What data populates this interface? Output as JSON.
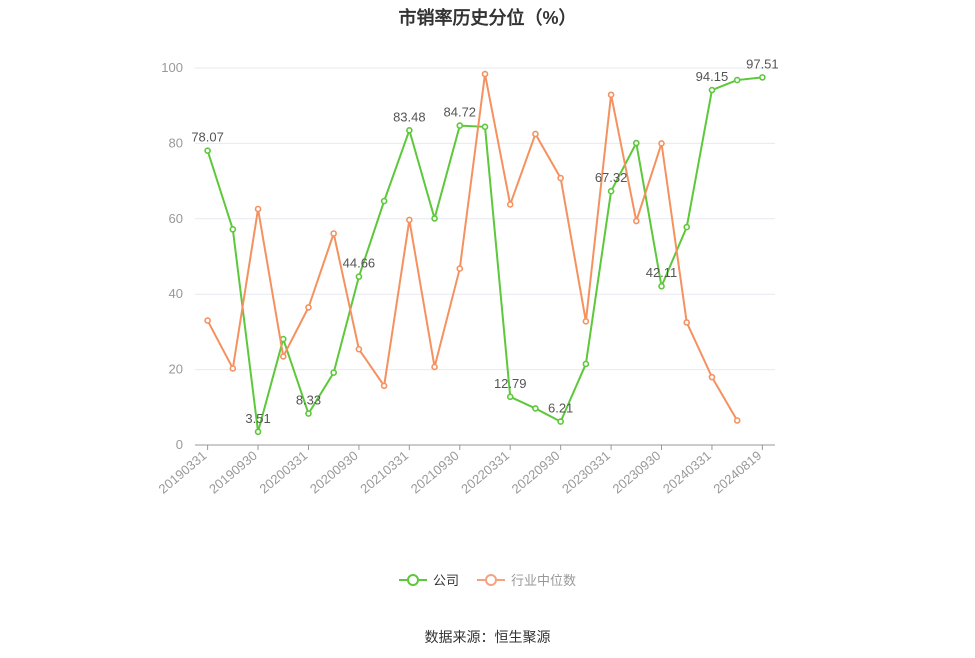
{
  "chart_data": {
    "type": "line",
    "title": "市销率历史分位（%）",
    "xlabel": "",
    "ylabel": "",
    "ylim": [
      0,
      100
    ],
    "yticks": [
      0,
      20,
      40,
      60,
      80,
      100
    ],
    "categories": [
      "20190331",
      "20190630",
      "20190930",
      "20191231",
      "20200331",
      "20200630",
      "20200930",
      "20201231",
      "20210331",
      "20210630",
      "20210930",
      "20211231",
      "20220331",
      "20220630",
      "20220930",
      "20221231",
      "20230331",
      "20230630",
      "20230930",
      "20231231",
      "20240331",
      "20240630",
      "20240819"
    ],
    "tick_labels": [
      "20190331",
      "20190930",
      "20200331",
      "20200930",
      "20210331",
      "20210930",
      "20220331",
      "20220930",
      "20230331",
      "20230930",
      "20240331",
      "20240819"
    ],
    "grid": true,
    "legend_position": "bottom",
    "series": [
      {
        "name": "公司",
        "color": "#5cc83a",
        "values": [
          78.07,
          57.2,
          3.51,
          28.1,
          8.33,
          19.2,
          44.66,
          64.7,
          83.48,
          60.1,
          84.72,
          84.4,
          12.79,
          9.7,
          6.21,
          21.5,
          67.32,
          80.1,
          42.11,
          57.8,
          94.15,
          96.8,
          97.51
        ],
        "labels": [
          "78.07",
          null,
          "3.51",
          null,
          "8.33",
          null,
          "44.66",
          null,
          "83.48",
          null,
          "84.72",
          null,
          "12.79",
          null,
          "6.21",
          null,
          "67.32",
          null,
          "42.11",
          null,
          "94.15",
          null,
          "97.51"
        ]
      },
      {
        "name": "行业中位数",
        "color": "#f5915f",
        "values": [
          33.0,
          20.3,
          62.6,
          23.5,
          36.5,
          56.1,
          25.4,
          15.7,
          59.7,
          20.7,
          46.8,
          98.4,
          63.8,
          82.5,
          70.8,
          32.8,
          92.9,
          59.4,
          80.0,
          32.5,
          18.0,
          6.5,
          null
        ]
      }
    ]
  },
  "legend": {
    "items": [
      {
        "label": "公司",
        "color": "#5cc83a"
      },
      {
        "label": "行业中位数",
        "color": "#f5a27f"
      }
    ]
  },
  "source": "数据来源：恒生聚源",
  "colors": {
    "axis": "#999999",
    "grid": "#e6e9f0",
    "axis_text": "#999999"
  }
}
